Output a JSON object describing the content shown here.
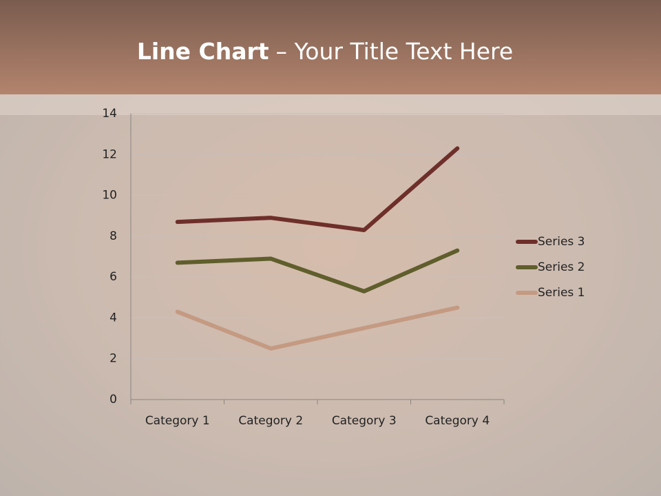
{
  "slide": {
    "title_lead": "Line Chart",
    "title_rest": "– Your Title Text Here"
  },
  "chart_data": {
    "type": "line",
    "categories": [
      "Category 1",
      "Category 2",
      "Category 3",
      "Category 4"
    ],
    "series": [
      {
        "name": "Series 1",
        "color": "#c49a82",
        "values": [
          4.3,
          2.5,
          3.5,
          4.5
        ]
      },
      {
        "name": "Series 2",
        "color": "#5f5e2c",
        "values": [
          6.7,
          6.9,
          5.3,
          7.3
        ]
      },
      {
        "name": "Series 3",
        "color": "#6e2f2a",
        "values": [
          8.7,
          8.9,
          8.3,
          12.3
        ]
      }
    ],
    "ylim": [
      0,
      14
    ],
    "yticks": [
      0,
      2,
      4,
      6,
      8,
      10,
      12,
      14
    ],
    "grid": true,
    "legend": "right"
  }
}
